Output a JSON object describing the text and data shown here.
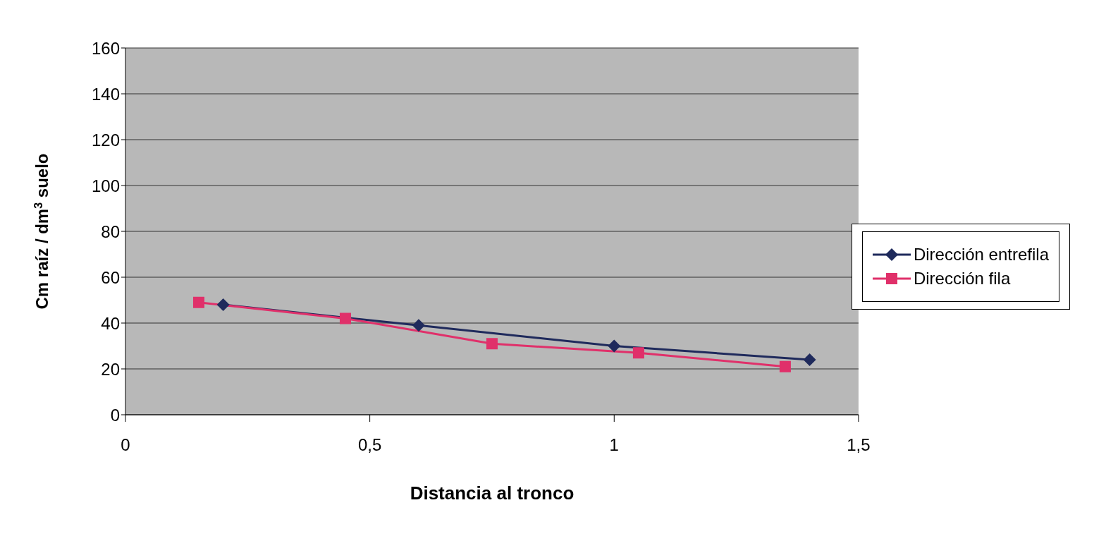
{
  "chart_data": {
    "type": "line",
    "xlabel": "Distancia al tronco",
    "ylabel": "Cm raíz / dm$^{3}$ suelo",
    "xlim": [
      0,
      1.5
    ],
    "xticks": [
      0,
      {
        "value": 0.5,
        "label": "0,5"
      },
      1,
      {
        "value": 1.5,
        "label": "1,5"
      }
    ],
    "ylim": [
      0,
      160
    ],
    "yticks": [
      0,
      20,
      40,
      60,
      80,
      100,
      120,
      140,
      160
    ],
    "grid": "y",
    "legend": "right",
    "line_style": "solid",
    "series": [
      {
        "name": "Dirección entrefila",
        "color": "#1f2a5c",
        "marker": "diamond",
        "x": [
          0.2,
          0.6,
          1.0,
          1.4
        ],
        "values": [
          48,
          39,
          30,
          24
        ]
      },
      {
        "name": "Dirección fila",
        "color": "#e0306a",
        "marker": "square",
        "x": [
          0.15,
          0.45,
          0.75,
          1.05,
          1.35
        ],
        "values": [
          49,
          42,
          31,
          27,
          21
        ]
      }
    ]
  }
}
